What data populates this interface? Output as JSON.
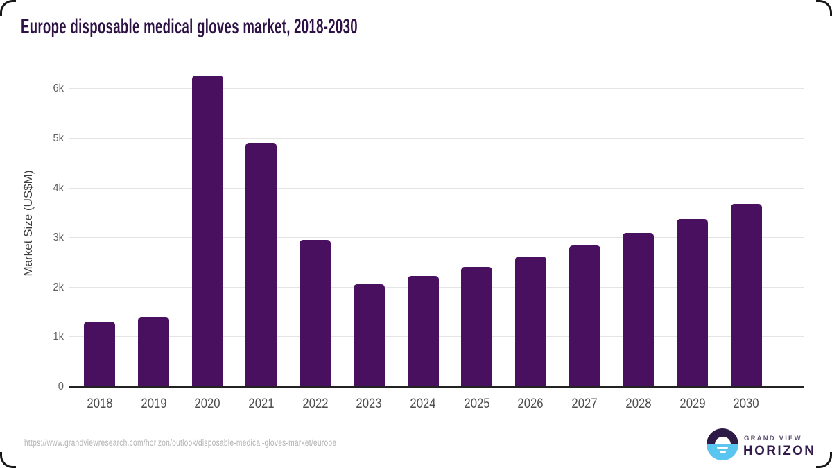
{
  "page": {
    "title": "Europe disposable medical gloves market, 2018-2030",
    "source_url": "https://www.grandviewresearch.com/horizon/outlook/disposable-medical-gloves-market/europe"
  },
  "logo": {
    "line1": "GRAND VIEW",
    "line2": "HORIZON"
  },
  "colors": {
    "bar": "#4a1060",
    "title": "#2e1245",
    "axis": "#222222",
    "gridline": "#e4e4e4",
    "url_text": "#b5b5b5",
    "logo_blue": "#5bc5f2",
    "logo_dark": "#2e1a47"
  },
  "chart_data": {
    "type": "bar",
    "title": "Europe disposable medical gloves market, 2018-2030",
    "categories": [
      "2018",
      "2019",
      "2020",
      "2021",
      "2022",
      "2023",
      "2024",
      "2025",
      "2026",
      "2027",
      "2028",
      "2029",
      "2030"
    ],
    "values": [
      1300,
      1400,
      6250,
      4900,
      2940,
      2060,
      2220,
      2400,
      2610,
      2840,
      3090,
      3370,
      3670
    ],
    "xlabel": "",
    "ylabel": "Market Size (US$M)",
    "ylim": [
      0,
      6480
    ],
    "yticks": [
      0,
      1000,
      2000,
      3000,
      4000,
      5000,
      6000
    ],
    "ytick_labels": [
      "0",
      "1k",
      "2k",
      "3k",
      "4k",
      "5k",
      "6k"
    ],
    "grid": "horizontal",
    "legend": "none",
    "bar_color": "#4a1060"
  }
}
